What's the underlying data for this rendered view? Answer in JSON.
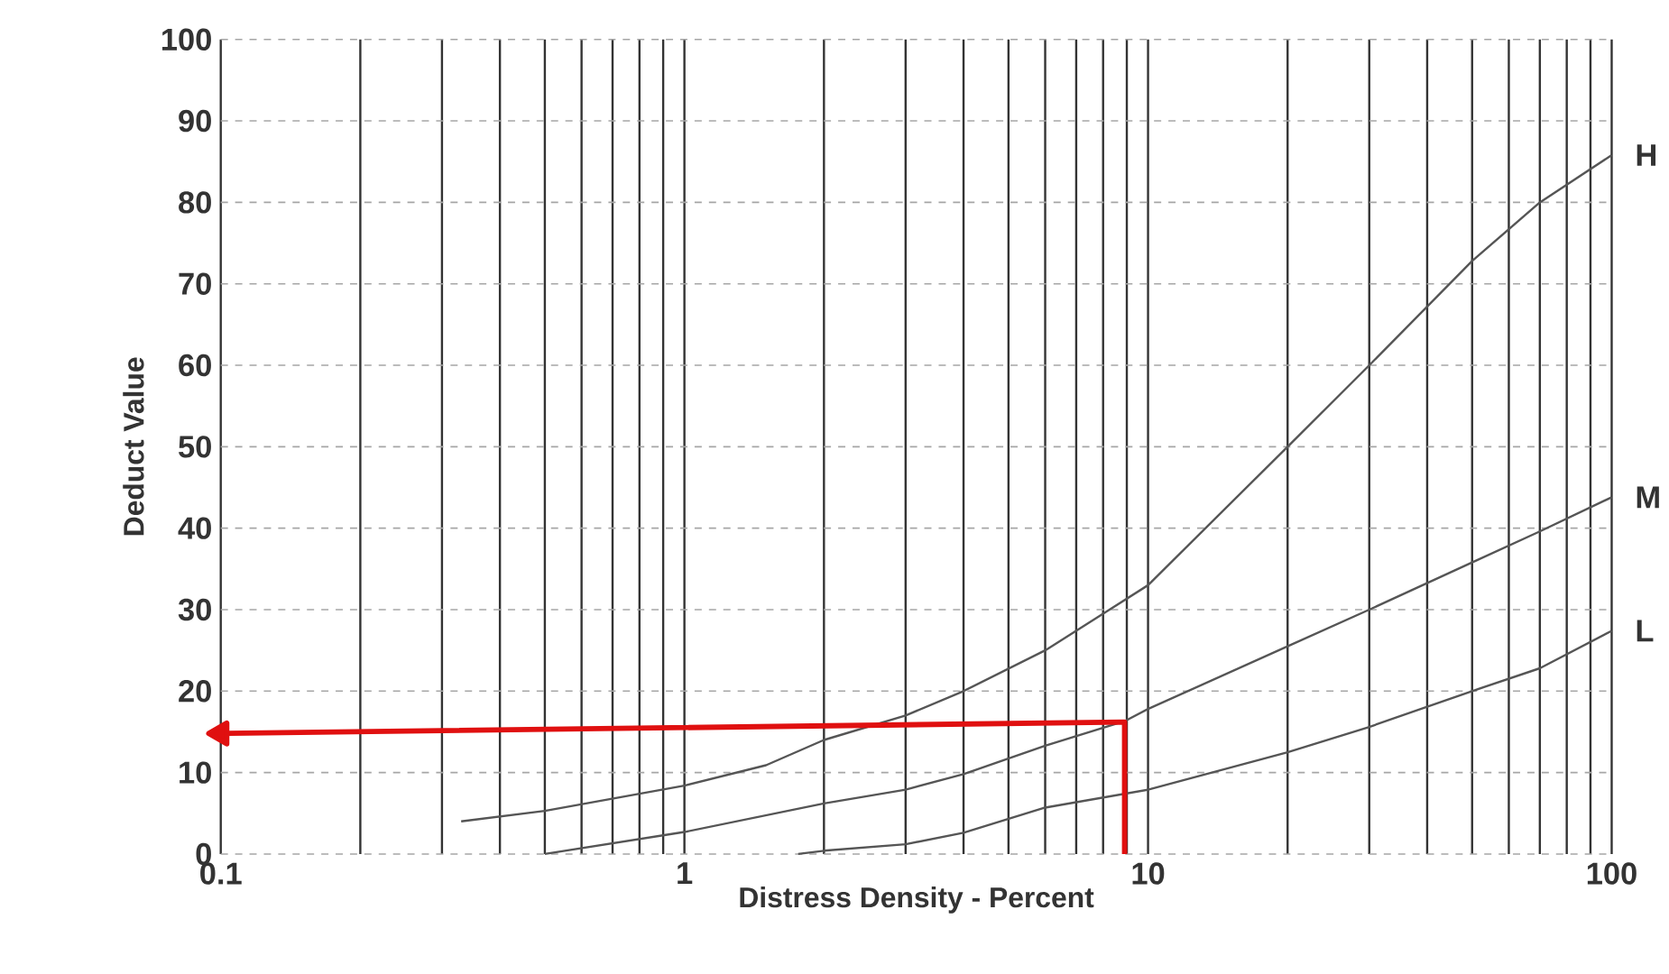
{
  "chart_data": {
    "type": "line",
    "xlabel": "Distress Density - Percent",
    "ylabel": "Deduct Value",
    "log": "x",
    "xlim": [
      0.1,
      100
    ],
    "xticks": [
      0.1,
      1,
      10,
      100
    ],
    "ylim": [
      0,
      100
    ],
    "yticks": [
      0,
      10,
      20,
      30,
      40,
      50,
      60,
      70,
      80,
      90,
      100
    ],
    "grid": true,
    "legend": false,
    "marker": "none",
    "line_style": "solid",
    "series": [
      {
        "name": "H",
        "color": "#555555",
        "x": [
          0.33,
          0.5,
          1,
          1.5,
          2,
          3,
          4,
          6,
          8.1,
          10,
          20,
          30,
          50,
          70,
          100
        ],
        "values": [
          4,
          5.3,
          8.4,
          10.9,
          14,
          17,
          20,
          25,
          29.7,
          33,
          50,
          60,
          72.8,
          80,
          85.8
        ]
      },
      {
        "name": "M",
        "color": "#555555",
        "x": [
          0.5,
          1,
          2,
          3,
          4,
          6,
          8.9,
          10,
          20,
          30,
          50,
          70,
          100
        ],
        "values": [
          0,
          2.7,
          6.2,
          7.9,
          9.8,
          13.3,
          16.3,
          17.8,
          25.5,
          30,
          35.8,
          39.6,
          43.8
        ]
      },
      {
        "name": "L",
        "color": "#555555",
        "x": [
          1.76,
          2,
          3,
          4,
          6,
          10,
          20,
          30,
          50,
          70,
          100
        ],
        "values": [
          0,
          0.4,
          1.2,
          2.6,
          5.7,
          7.9,
          12.5,
          15.6,
          20,
          22.8,
          27.4
        ]
      },
      {
        "color": "#e01010",
        "x": [
          8.9,
          8.9,
          0.1
        ],
        "values": [
          0,
          16.2,
          14.8
        ]
      }
    ]
  }
}
